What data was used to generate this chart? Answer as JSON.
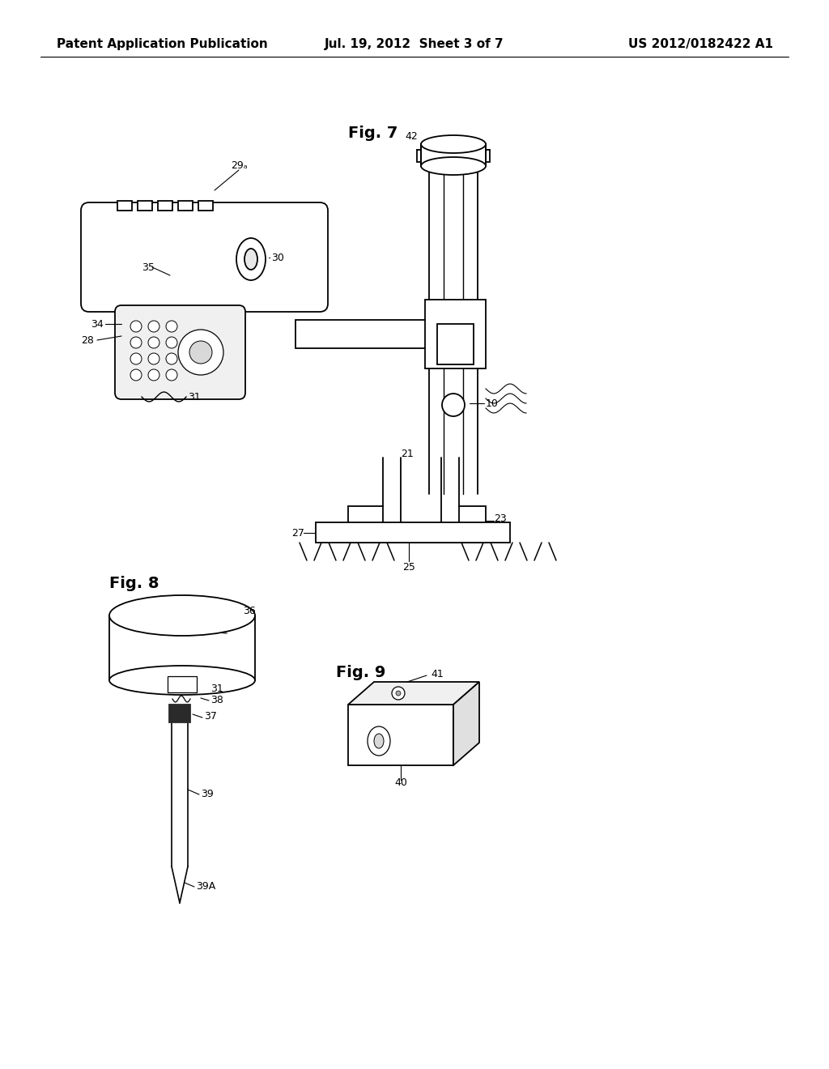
{
  "background_color": "#ffffff",
  "header_left": "Patent Application Publication",
  "header_center": "Jul. 19, 2012  Sheet 3 of 7",
  "header_right": "US 2012/0182422 A1",
  "line_color": "#000000",
  "lw": 1.3
}
